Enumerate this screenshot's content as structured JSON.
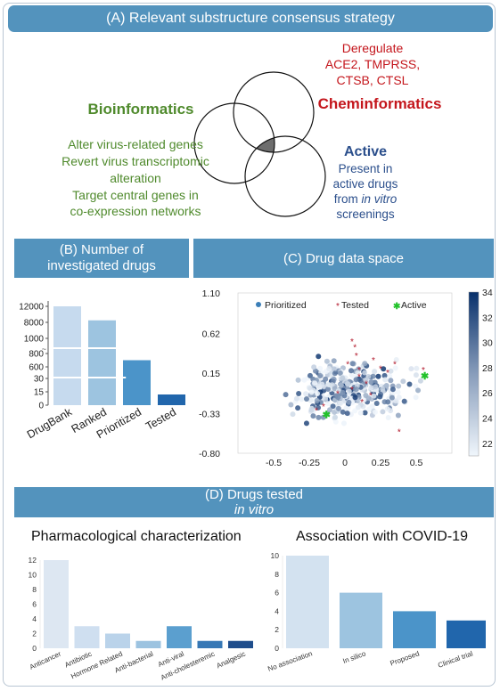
{
  "panel_a": {
    "title": "(A) Relevant substructure consensus strategy",
    "bioinformatics": {
      "heading": "Bioinformatics",
      "lines": [
        "Alter virus-related genes",
        "Revert virus transcriptomic",
        "alteration",
        "Target central genes in",
        "co-expression networks"
      ]
    },
    "cheminformatics": {
      "heading": "Cheminformatics",
      "lines": [
        "Deregulate",
        "ACE2, TMPRSS,",
        "CTSB, CTSL"
      ]
    },
    "active": {
      "heading": "Active",
      "line1": "Present in",
      "line2": "active drugs",
      "line3_pre": "from ",
      "line3_em": "in vitro",
      "line4": "screenings"
    },
    "colors": {
      "bio": "#4f8a2c",
      "chem": "#c4161c",
      "active": "#2b4f8c",
      "overlap": "#6e6e6e"
    }
  },
  "panel_b": {
    "title_line1": "(B) Number of",
    "title_line2": "investigated drugs",
    "chart_data": {
      "type": "bar",
      "categories": [
        "DrugBank",
        "Ranked",
        "Prioritized",
        "Tested"
      ],
      "values": [
        12000,
        8500,
        700,
        12
      ],
      "y_ticks": [
        "12000",
        "8000",
        "1000",
        "800",
        "600",
        "30",
        "15",
        "0"
      ],
      "broken_axis": true,
      "colors": [
        "#c6daee",
        "#9dc4e0",
        "#4b94c9",
        "#2166ac"
      ]
    }
  },
  "panel_c": {
    "title": "(C) Drug data space",
    "chart_data": {
      "type": "scatter",
      "xlim": [
        -0.75,
        0.75
      ],
      "ylim": [
        -0.8,
        1.1
      ],
      "x_ticks": [
        "-0.5",
        "-0.25",
        "0",
        "0.25",
        "0.5"
      ],
      "y_ticks": [
        "1.10",
        "0.62",
        "0.15",
        "-0.33",
        "-0.80"
      ],
      "colorbar_ticks": [
        "34",
        "32",
        "30",
        "28",
        "26",
        "24",
        "22"
      ],
      "colorbar_range": [
        21,
        34
      ],
      "legend": [
        "Prioritized",
        "Tested",
        "Active"
      ],
      "tested_points": [
        [
          0.07,
          0.45
        ],
        [
          0.05,
          0.52
        ],
        [
          0.08,
          0.35
        ],
        [
          0.02,
          0.25
        ],
        [
          0.2,
          0.3
        ],
        [
          0.25,
          0.2
        ],
        [
          0.3,
          0.15
        ],
        [
          0.35,
          0.25
        ],
        [
          0.1,
          0.1
        ],
        [
          0.15,
          0.02
        ],
        [
          0.05,
          -0.05
        ],
        [
          -0.05,
          -0.1
        ],
        [
          -0.15,
          -0.25
        ],
        [
          -0.2,
          -0.3
        ],
        [
          0.12,
          -0.2
        ],
        [
          0.18,
          -0.12
        ],
        [
          0.38,
          -0.55
        ],
        [
          0.55,
          0.18
        ],
        [
          0.1,
          0.18
        ]
      ],
      "active_points": [
        [
          -0.13,
          -0.34
        ],
        [
          0.56,
          0.12
        ]
      ]
    }
  },
  "panel_d": {
    "title_pre": "(D) Drugs tested ",
    "title_em": "in vitro",
    "pharma": {
      "title": "Pharmacological characterization",
      "chart_data": {
        "type": "bar",
        "categories": [
          "Anticancer",
          "Antibiotic",
          "Hormone Related",
          "Anti-bacterial",
          "Anti-viral",
          "Anti-cholesteremic",
          "Analgesic"
        ],
        "values": [
          12,
          3,
          2,
          1,
          3,
          1,
          1
        ],
        "ylim": [
          0,
          12
        ],
        "y_ticks": [
          "0",
          "2",
          "4",
          "6",
          "8",
          "10",
          "12"
        ],
        "colors": [
          "#dde7f2",
          "#cfdff0",
          "#bad3ea",
          "#9cc3e0",
          "#5b9fcf",
          "#3778b5",
          "#1f4e8c"
        ]
      }
    },
    "covid": {
      "title": "Association with COVID-19",
      "chart_data": {
        "type": "bar",
        "categories": [
          "No association",
          "In silico",
          "Proposed",
          "Clinical trial"
        ],
        "values": [
          10,
          6,
          4,
          3
        ],
        "ylim": [
          0,
          10
        ],
        "y_ticks": [
          "0",
          "2",
          "4",
          "6",
          "8",
          "10"
        ],
        "colors": [
          "#d3e2f0",
          "#9dc4e0",
          "#4b94c9",
          "#2166ac"
        ]
      }
    }
  }
}
